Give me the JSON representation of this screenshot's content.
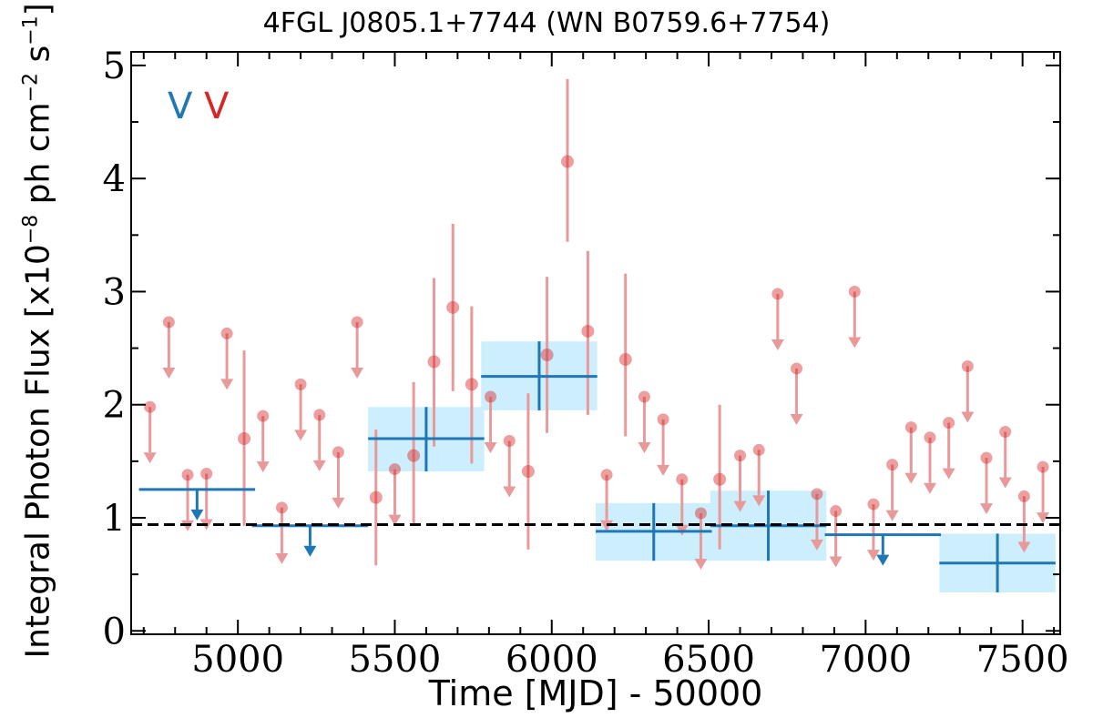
{
  "chart_data": {
    "type": "scatter",
    "title": "4FGL J0805.1+7744 (WN B0759.6+7754)",
    "xlabel": "Time [MJD] - 50000",
    "ylabel_prefix": "Integral Photon Flux [x10",
    "ylabel_exp1": "−8",
    "ylabel_mid": " ph cm",
    "ylabel_exp2": "−2",
    "ylabel_mid2": " s",
    "ylabel_exp3": "−1",
    "ylabel_suffix": "]",
    "xlim": [
      4660,
      7620
    ],
    "ylim": [
      -0.03,
      5.12
    ],
    "xticks": [
      5000,
      5500,
      6000,
      6500,
      7000,
      7500
    ],
    "yticks": [
      0,
      1,
      2,
      3,
      4,
      5
    ],
    "grid": false,
    "reference_line": 0.94,
    "legend": [
      "V",
      "V"
    ],
    "colors": {
      "blue": "#1f77b4",
      "red": "#d62728",
      "red_light": "#e8999a",
      "band": "#cdeffd"
    },
    "series": [
      {
        "bin": "long",
        "detections": [
          {
            "x": 5600,
            "xerr": 185,
            "y": 1.7,
            "ylo": 1.41,
            "yhi": 1.98
          },
          {
            "x": 5960,
            "xerr": 185,
            "y": 2.25,
            "ylo": 1.95,
            "yhi": 2.56
          },
          {
            "x": 6325,
            "xerr": 185,
            "y": 0.88,
            "ylo": 0.62,
            "yhi": 1.13
          },
          {
            "x": 6690,
            "xerr": 185,
            "y": 0.93,
            "ylo": 0.62,
            "yhi": 1.24
          },
          {
            "x": 7420,
            "xerr": 185,
            "y": 0.6,
            "ylo": 0.34,
            "yhi": 0.86
          }
        ],
        "upper_limits": [
          {
            "x": 4870,
            "xerr": 185,
            "y": 1.25
          },
          {
            "x": 5230,
            "xerr": 185,
            "y": 0.93
          },
          {
            "x": 7055,
            "xerr": 185,
            "y": 0.85
          }
        ]
      },
      {
        "bin": "short",
        "detections": [
          {
            "x": 5020,
            "y": 1.7,
            "ylo": 0.93,
            "yhi": 2.48
          },
          {
            "x": 5440,
            "y": 1.18,
            "ylo": 0.58,
            "yhi": 1.78
          },
          {
            "x": 5560,
            "y": 1.55,
            "ylo": 0.93,
            "yhi": 2.2
          },
          {
            "x": 5625,
            "y": 2.38,
            "ylo": 1.63,
            "yhi": 3.12
          },
          {
            "x": 5685,
            "y": 2.86,
            "ylo": 2.12,
            "yhi": 3.6
          },
          {
            "x": 5745,
            "y": 2.18,
            "ylo": 1.48,
            "yhi": 2.87
          },
          {
            "x": 5925,
            "y": 1.41,
            "ylo": 0.72,
            "yhi": 2.1
          },
          {
            "x": 5985,
            "y": 2.44,
            "ylo": 1.75,
            "yhi": 3.13
          },
          {
            "x": 6050,
            "y": 4.15,
            "ylo": 3.44,
            "yhi": 4.88
          },
          {
            "x": 6115,
            "y": 2.65,
            "ylo": 1.91,
            "yhi": 3.36
          },
          {
            "x": 6235,
            "y": 2.4,
            "ylo": 1.72,
            "yhi": 3.16
          },
          {
            "x": 6535,
            "y": 1.34,
            "ylo": 0.72,
            "yhi": 2.0
          }
        ],
        "upper_limits": [
          {
            "x": 4720,
            "y": 1.98
          },
          {
            "x": 4780,
            "y": 2.73
          },
          {
            "x": 4840,
            "y": 1.38
          },
          {
            "x": 4900,
            "y": 1.39
          },
          {
            "x": 4965,
            "y": 2.63
          },
          {
            "x": 5080,
            "y": 1.9
          },
          {
            "x": 5140,
            "y": 1.09
          },
          {
            "x": 5200,
            "y": 2.18
          },
          {
            "x": 5260,
            "y": 1.91
          },
          {
            "x": 5320,
            "y": 1.58
          },
          {
            "x": 5380,
            "y": 2.73
          },
          {
            "x": 5500,
            "y": 1.43
          },
          {
            "x": 5805,
            "y": 2.07
          },
          {
            "x": 5865,
            "y": 1.68
          },
          {
            "x": 6175,
            "y": 1.38
          },
          {
            "x": 6295,
            "y": 2.07
          },
          {
            "x": 6355,
            "y": 1.87
          },
          {
            "x": 6415,
            "y": 1.34
          },
          {
            "x": 6475,
            "y": 1.04
          },
          {
            "x": 6600,
            "y": 1.55
          },
          {
            "x": 6660,
            "y": 1.6
          },
          {
            "x": 6720,
            "y": 2.98
          },
          {
            "x": 6780,
            "y": 2.32
          },
          {
            "x": 6845,
            "y": 1.21
          },
          {
            "x": 6905,
            "y": 1.06
          },
          {
            "x": 6965,
            "y": 3.0
          },
          {
            "x": 7025,
            "y": 1.12
          },
          {
            "x": 7085,
            "y": 1.47
          },
          {
            "x": 7145,
            "y": 1.8
          },
          {
            "x": 7205,
            "y": 1.71
          },
          {
            "x": 7265,
            "y": 1.84
          },
          {
            "x": 7325,
            "y": 2.34
          },
          {
            "x": 7385,
            "y": 1.53
          },
          {
            "x": 7445,
            "y": 1.76
          },
          {
            "x": 7505,
            "y": 1.19
          },
          {
            "x": 7565,
            "y": 1.45
          }
        ]
      }
    ]
  }
}
